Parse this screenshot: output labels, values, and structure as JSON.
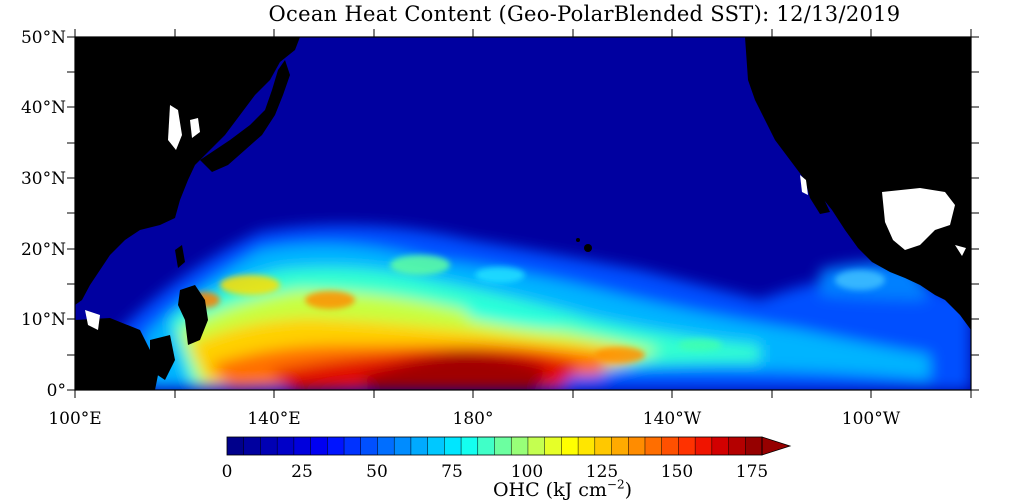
{
  "title": "Ocean Heat Content (Geo-PolarBlended SST): 12/13/2019",
  "map": {
    "lat_labels": [
      "50°N",
      "40°N",
      "30°N",
      "20°N",
      "10°N",
      "0°"
    ],
    "lon_labels": [
      "100°E",
      "140°E",
      "180°",
      "140°W",
      "100°W"
    ],
    "lat_range": [
      0,
      50
    ],
    "lon_range_deg_east": [
      100,
      280
    ],
    "land_color": "#000000",
    "missing_color": "#ffffff"
  },
  "colorbar": {
    "ticks": [
      "0",
      "25",
      "50",
      "75",
      "100",
      "125",
      "150",
      "175"
    ],
    "min": 0,
    "max": 175,
    "step": 5,
    "overflow_arrow": true,
    "colors": [
      "#00008b",
      "#00009f",
      "#0000b4",
      "#0000c8",
      "#0000dd",
      "#0000f2",
      "#0014ff",
      "#0032ff",
      "#0050ff",
      "#006eff",
      "#008cff",
      "#00aaff",
      "#00c8ff",
      "#00e6ff",
      "#14fff0",
      "#40ffc8",
      "#6cffa0",
      "#98ff78",
      "#c4ff50",
      "#e6ff28",
      "#ffff00",
      "#ffe600",
      "#ffc800",
      "#ffaa00",
      "#ff8c00",
      "#ff6e00",
      "#ff5000",
      "#ff3200",
      "#f01400",
      "#d20000",
      "#b40000",
      "#960000"
    ],
    "overflow_color": "#960000",
    "label_main": "OHC (kJ cm",
    "label_sup": "−2",
    "label_end": ")"
  }
}
